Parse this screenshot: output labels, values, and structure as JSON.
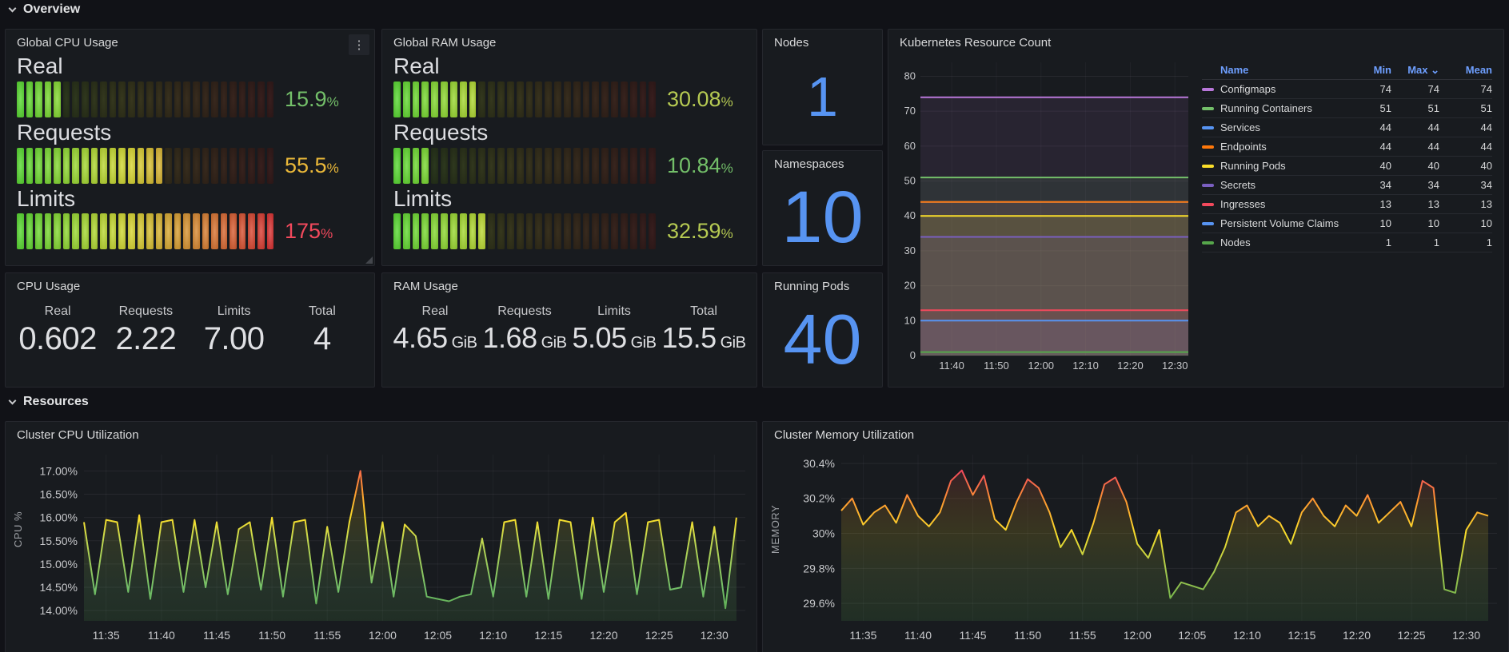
{
  "sections": {
    "overview": {
      "label": "Overview"
    },
    "resources": {
      "label": "Resources"
    }
  },
  "icons": {
    "panel_menu": "⋮",
    "chevron_down": "⌄",
    "sort_down": "⌄"
  },
  "panels": {
    "global_cpu": {
      "title": "Global CPU Usage",
      "cells": 28,
      "gauges": [
        {
          "label": "Real",
          "pct": 15.9,
          "display": "15.9",
          "unit": "%",
          "value_color": "#73bf69"
        },
        {
          "label": "Requests",
          "pct": 55.5,
          "display": "55.5",
          "unit": "%",
          "value_color": "#eab839"
        },
        {
          "label": "Limits",
          "pct": 175,
          "display": "175",
          "unit": "%",
          "value_color": "#f2495c"
        }
      ]
    },
    "global_ram": {
      "title": "Global RAM Usage",
      "cells": 28,
      "gauges": [
        {
          "label": "Real",
          "pct": 30.08,
          "display": "30.08",
          "unit": "%",
          "value_color": "#b5c952"
        },
        {
          "label": "Requests",
          "pct": 10.84,
          "display": "10.84",
          "unit": "%",
          "value_color": "#73bf69"
        },
        {
          "label": "Limits",
          "pct": 32.59,
          "display": "32.59",
          "unit": "%",
          "value_color": "#b5c952"
        }
      ]
    },
    "nodes": {
      "title": "Nodes",
      "value": "1",
      "color": "#5794f2"
    },
    "namespaces": {
      "title": "Namespaces",
      "value": "10",
      "color": "#5794f2"
    },
    "running_pods": {
      "title": "Running Pods",
      "value": "40",
      "color": "#5794f2"
    },
    "cpu_usage": {
      "title": "CPU Usage",
      "stats": [
        {
          "label": "Real",
          "value": "0.602",
          "unit": ""
        },
        {
          "label": "Requests",
          "value": "2.22",
          "unit": ""
        },
        {
          "label": "Limits",
          "value": "7.00",
          "unit": ""
        },
        {
          "label": "Total",
          "value": "4",
          "unit": ""
        }
      ]
    },
    "ram_usage": {
      "title": "RAM Usage",
      "stats": [
        {
          "label": "Real",
          "value": "4.65",
          "unit": "GiB"
        },
        {
          "label": "Requests",
          "value": "1.68",
          "unit": "GiB"
        },
        {
          "label": "Limits",
          "value": "5.05",
          "unit": "GiB"
        },
        {
          "label": "Total",
          "value": "15.5",
          "unit": "GiB"
        }
      ]
    }
  },
  "chart_data": [
    {
      "id": "k8s_resource_count",
      "type": "line",
      "title": "Kubernetes Resource Count",
      "xlim_minutes": [
        0,
        60
      ],
      "x_ticks": [
        {
          "t": 7,
          "label": "11:40"
        },
        {
          "t": 17,
          "label": "11:50"
        },
        {
          "t": 27,
          "label": "12:00"
        },
        {
          "t": 37,
          "label": "12:10"
        },
        {
          "t": 47,
          "label": "12:20"
        },
        {
          "t": 57,
          "label": "12:30"
        }
      ],
      "ylim": [
        0,
        84
      ],
      "y_ticks": [
        0,
        10,
        20,
        30,
        40,
        50,
        60,
        70,
        80
      ],
      "legend": {
        "columns": [
          "Name",
          "Min",
          "Max",
          "Mean"
        ],
        "sorted_column": "Max",
        "sort_indicator": "⌄",
        "position": "right"
      },
      "series": [
        {
          "name": "Configmaps",
          "color": "#b877d9",
          "value": 74,
          "min": 74,
          "max": 74,
          "mean": 74
        },
        {
          "name": "Running Containers",
          "color": "#73bf69",
          "value": 51,
          "min": 51,
          "max": 51,
          "mean": 51
        },
        {
          "name": "Services",
          "color": "#5794f2",
          "value": 44,
          "min": 44,
          "max": 44,
          "mean": 44
        },
        {
          "name": "Endpoints",
          "color": "#ff780a",
          "value": 44,
          "min": 44,
          "max": 44,
          "mean": 44
        },
        {
          "name": "Running Pods",
          "color": "#fade2a",
          "value": 40,
          "min": 40,
          "max": 40,
          "mean": 40
        },
        {
          "name": "Secrets",
          "color": "#7a5fc0",
          "value": 34,
          "min": 34,
          "max": 34,
          "mean": 34
        },
        {
          "name": "Ingresses",
          "color": "#f2495c",
          "value": 13,
          "min": 13,
          "max": 13,
          "mean": 13
        },
        {
          "name": "Persistent Volume Claims",
          "color": "#5794f2",
          "value": 10,
          "min": 10,
          "max": 10,
          "mean": 10
        },
        {
          "name": "Nodes",
          "color": "#56a64b",
          "value": 1,
          "min": 1,
          "max": 1,
          "mean": 1
        }
      ]
    },
    {
      "id": "cluster_cpu",
      "type": "line",
      "title": "Cluster CPU Utilization",
      "ylabel": "CPU %",
      "x_start": "11:33",
      "step_minutes": 1,
      "xlim_minutes": [
        0,
        59.8
      ],
      "x_ticks": [
        {
          "t": 2,
          "label": "11:35"
        },
        {
          "t": 7,
          "label": "11:40"
        },
        {
          "t": 12,
          "label": "11:45"
        },
        {
          "t": 17,
          "label": "11:50"
        },
        {
          "t": 22,
          "label": "11:55"
        },
        {
          "t": 27,
          "label": "12:00"
        },
        {
          "t": 32,
          "label": "12:05"
        },
        {
          "t": 37,
          "label": "12:10"
        },
        {
          "t": 42,
          "label": "12:15"
        },
        {
          "t": 47,
          "label": "12:20"
        },
        {
          "t": 52,
          "label": "12:25"
        },
        {
          "t": 57,
          "label": "12:30"
        }
      ],
      "ylim": [
        13.78,
        17.35
      ],
      "y_ticks": [
        {
          "v": 14,
          "label": "14.00%"
        },
        {
          "v": 14.5,
          "label": "14.50%"
        },
        {
          "v": 15,
          "label": "15.00%"
        },
        {
          "v": 15.5,
          "label": "15.50%"
        },
        {
          "v": 16,
          "label": "16.00%"
        },
        {
          "v": 16.5,
          "label": "16.50%"
        },
        {
          "v": 17,
          "label": "17.00%"
        }
      ],
      "gradient": [
        {
          "at": 0,
          "color": "#56a64b"
        },
        {
          "at": 0.2,
          "color": "#73bf69"
        },
        {
          "at": 0.5,
          "color": "#c7d94e"
        },
        {
          "at": 0.62,
          "color": "#fade2a"
        },
        {
          "at": 0.78,
          "color": "#ff9830"
        },
        {
          "at": 1,
          "color": "#f2495c"
        }
      ],
      "values": [
        15.9,
        14.35,
        15.95,
        15.9,
        14.4,
        16.05,
        14.25,
        15.9,
        15.95,
        14.4,
        15.95,
        14.5,
        15.9,
        14.35,
        15.75,
        15.9,
        14.45,
        16.0,
        14.3,
        15.9,
        15.95,
        14.15,
        15.8,
        14.4,
        15.9,
        17.0,
        14.6,
        15.9,
        14.3,
        15.85,
        15.6,
        14.3,
        14.25,
        14.2,
        14.3,
        14.35,
        15.55,
        14.3,
        15.9,
        15.95,
        14.3,
        15.9,
        14.25,
        15.95,
        15.9,
        14.25,
        16.0,
        14.4,
        15.9,
        16.1,
        14.35,
        15.9,
        15.95,
        14.45,
        14.5,
        15.9,
        14.3,
        15.8,
        14.05,
        16.0
      ]
    },
    {
      "id": "cluster_memory",
      "type": "line",
      "title": "Cluster Memory Utilization",
      "ylabel": "MEMORY",
      "x_start": "11:33",
      "step_minutes": 1,
      "xlim_minutes": [
        0,
        59.8
      ],
      "x_ticks": [
        {
          "t": 2,
          "label": "11:35"
        },
        {
          "t": 7,
          "label": "11:40"
        },
        {
          "t": 12,
          "label": "11:45"
        },
        {
          "t": 17,
          "label": "11:50"
        },
        {
          "t": 22,
          "label": "11:55"
        },
        {
          "t": 27,
          "label": "12:00"
        },
        {
          "t": 32,
          "label": "12:05"
        },
        {
          "t": 37,
          "label": "12:10"
        },
        {
          "t": 42,
          "label": "12:15"
        },
        {
          "t": 47,
          "label": "12:20"
        },
        {
          "t": 52,
          "label": "12:25"
        },
        {
          "t": 57,
          "label": "12:30"
        }
      ],
      "ylim": [
        29.5,
        30.45
      ],
      "y_ticks": [
        {
          "v": 29.6,
          "label": "29.6%"
        },
        {
          "v": 29.8,
          "label": "29.8%"
        },
        {
          "v": 30,
          "label": "30%"
        },
        {
          "v": 30.2,
          "label": "30.2%"
        },
        {
          "v": 30.4,
          "label": "30.4%"
        }
      ],
      "gradient": [
        {
          "at": 0,
          "color": "#56a64b"
        },
        {
          "at": 0.3,
          "color": "#a3c94e"
        },
        {
          "at": 0.53,
          "color": "#fade2a"
        },
        {
          "at": 0.72,
          "color": "#ff9830"
        },
        {
          "at": 0.9,
          "color": "#f2495c"
        },
        {
          "at": 1,
          "color": "#f2495c"
        }
      ],
      "values": [
        30.13,
        30.2,
        30.05,
        30.12,
        30.16,
        30.06,
        30.22,
        30.1,
        30.04,
        30.12,
        30.3,
        30.36,
        30.22,
        30.33,
        30.08,
        30.02,
        30.18,
        30.31,
        30.26,
        30.12,
        29.92,
        30.02,
        29.88,
        30.06,
        30.28,
        30.32,
        30.18,
        29.94,
        29.86,
        30.02,
        29.63,
        29.72,
        29.7,
        29.68,
        29.78,
        29.92,
        30.12,
        30.16,
        30.04,
        30.1,
        30.06,
        29.94,
        30.12,
        30.2,
        30.1,
        30.04,
        30.16,
        30.1,
        30.22,
        30.06,
        30.12,
        30.18,
        30.04,
        30.3,
        30.26,
        29.68,
        29.66,
        30.02,
        30.12,
        30.1
      ]
    }
  ]
}
